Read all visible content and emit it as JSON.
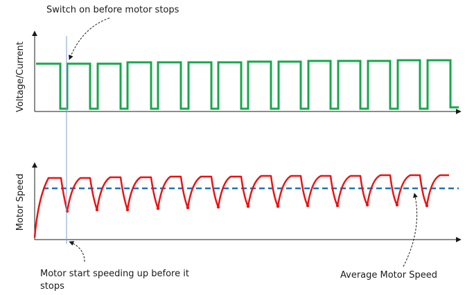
{
  "diagram": {
    "annotations": {
      "switch_on": "Switch on before motor stops",
      "start_speeding_line1": "Motor start speeding up before it",
      "start_speeding_line2": "stops",
      "average_speed": "Average Motor Speed"
    },
    "top_plot": {
      "ylabel": "Voltage/Current"
    },
    "bottom_plot": {
      "ylabel": "Motor Speed"
    },
    "colors": {
      "pwm_signal": "#15a84a",
      "motor_speed": "#ee1111",
      "average_line": "#1f6fb5",
      "marker_line": "#7aa0d0",
      "axis": "#1a1a1a"
    }
  }
}
